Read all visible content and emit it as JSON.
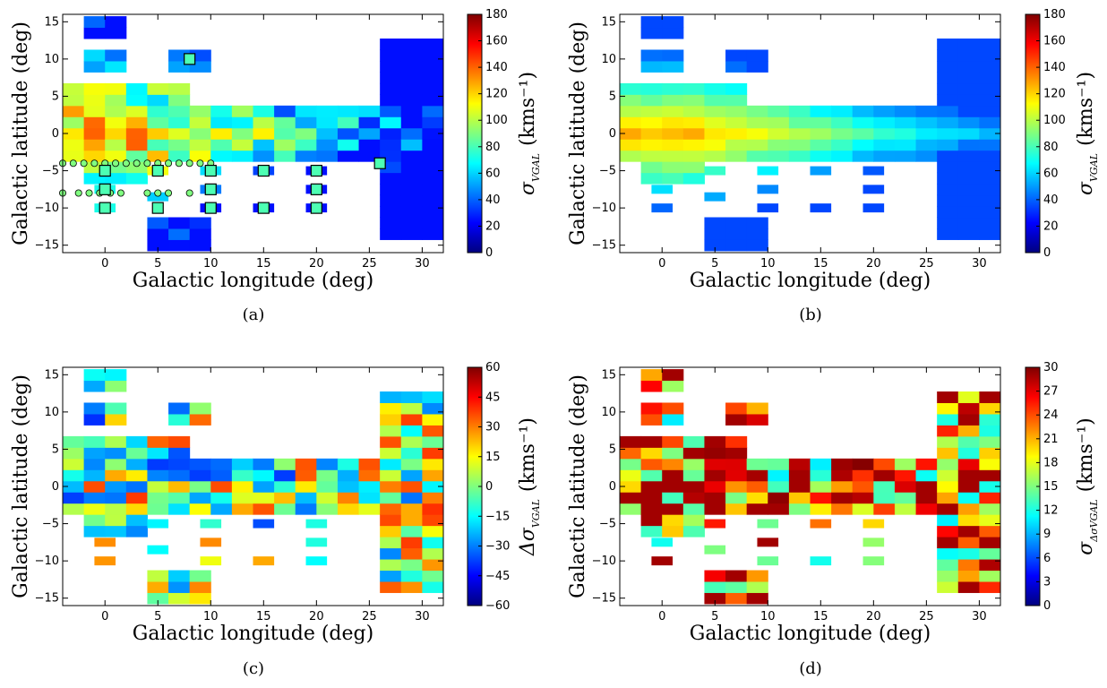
{
  "colorscale": [
    "#00007f",
    "#0000ff",
    "#007fff",
    "#00ffff",
    "#7fff7f",
    "#ffff00",
    "#ff7f00",
    "#ff0000",
    "#7f0000"
  ],
  "chart_data": [
    {
      "type": "heatmap",
      "panel_label": "(a)",
      "xlabel": "Galactic longitude (deg)",
      "ylabel": "Galactic latitude (deg)",
      "xlim": [
        -4,
        32
      ],
      "ylim": [
        -16,
        16
      ],
      "x_ticks": [
        "0",
        "5",
        "10",
        "15",
        "20",
        "25",
        "30"
      ],
      "y_ticks": [
        "-15",
        "-10",
        "-5",
        "0",
        "5",
        "10",
        "15"
      ],
      "colorbar": {
        "label_main": "σ",
        "label_sub": "VGAL",
        "unit": "(kms⁻¹)",
        "vmin": 0,
        "vmax": 180,
        "ticks": [
          "0",
          "20",
          "40",
          "60",
          "80",
          "100",
          "120",
          "140",
          "160",
          "180"
        ]
      },
      "markers": {
        "squares": [
          [
            0,
            -5
          ],
          [
            5,
            -5
          ],
          [
            10,
            -5
          ],
          [
            15,
            -5
          ],
          [
            20,
            -5
          ],
          [
            0,
            -7.5
          ],
          [
            10,
            -7.5
          ],
          [
            20,
            -7.5
          ],
          [
            0,
            -10
          ],
          [
            5,
            -10
          ],
          [
            10,
            -10
          ],
          [
            15,
            -10
          ],
          [
            20,
            -10
          ],
          [
            8,
            10
          ],
          [
            26,
            -4
          ]
        ],
        "circles": [
          [
            -4,
            -4
          ],
          [
            -3,
            -4
          ],
          [
            -2,
            -4
          ],
          [
            -1,
            -4
          ],
          [
            0,
            -4
          ],
          [
            1,
            -4
          ],
          [
            2,
            -4
          ],
          [
            3,
            -4
          ],
          [
            4,
            -4
          ],
          [
            5,
            -4
          ],
          [
            6,
            -4
          ],
          [
            7,
            -4
          ],
          [
            8,
            -4
          ],
          [
            9,
            -4
          ],
          [
            10,
            -4
          ],
          [
            -4,
            -8
          ],
          [
            -2.5,
            -8
          ],
          [
            -1.5,
            -8
          ],
          [
            -0.5,
            -8
          ],
          [
            0.5,
            -8
          ],
          [
            1.5,
            -8
          ],
          [
            4,
            -8
          ],
          [
            5,
            -8
          ],
          [
            6,
            -8
          ],
          [
            8,
            -8
          ]
        ]
      }
    },
    {
      "type": "heatmap",
      "panel_label": "(b)",
      "xlabel": "Galactic longitude (deg)",
      "ylabel": "Galactic latitude (deg)",
      "xlim": [
        -4,
        32
      ],
      "ylim": [
        -16,
        16
      ],
      "x_ticks": [
        "0",
        "5",
        "10",
        "15",
        "20",
        "25",
        "30"
      ],
      "y_ticks": [
        "-15",
        "-10",
        "-5",
        "0",
        "5",
        "10",
        "15"
      ],
      "colorbar": {
        "label_main": "σ",
        "label_sub": "VGAL",
        "unit": "(kms⁻¹)",
        "vmin": 0,
        "vmax": 180,
        "ticks": [
          "0",
          "20",
          "40",
          "60",
          "80",
          "100",
          "120",
          "140",
          "160",
          "180"
        ]
      }
    },
    {
      "type": "heatmap",
      "panel_label": "(c)",
      "xlabel": "Galactic longitude (deg)",
      "ylabel": "Galactic latitude (deg)",
      "xlim": [
        -4,
        32
      ],
      "ylim": [
        -16,
        16
      ],
      "x_ticks": [
        "0",
        "5",
        "10",
        "15",
        "20",
        "25",
        "30"
      ],
      "y_ticks": [
        "-15",
        "-10",
        "-5",
        "0",
        "5",
        "10",
        "15"
      ],
      "colorbar": {
        "label_main": "Δσ",
        "label_sub": "VGAL",
        "unit": "(kms⁻¹)",
        "vmin": -60,
        "vmax": 60,
        "ticks": [
          "-60",
          "-45",
          "-30",
          "-15",
          "0",
          "15",
          "30",
          "45",
          "60"
        ]
      }
    },
    {
      "type": "heatmap",
      "panel_label": "(d)",
      "xlabel": "Galactic longitude (deg)",
      "ylabel": "Galactic latitude (deg)",
      "xlim": [
        -4,
        32
      ],
      "ylim": [
        -16,
        16
      ],
      "x_ticks": [
        "0",
        "5",
        "10",
        "15",
        "20",
        "25",
        "30"
      ],
      "y_ticks": [
        "-15",
        "-10",
        "-5",
        "0",
        "5",
        "10",
        "15"
      ],
      "colorbar": {
        "label_main": "σ",
        "label_sub": "ΔσVGAL",
        "unit": "(kms⁻¹)",
        "vmin": 0,
        "vmax": 30,
        "ticks": [
          "0",
          "3",
          "6",
          "9",
          "12",
          "15",
          "18",
          "21",
          "24",
          "27",
          "30"
        ]
      }
    }
  ]
}
